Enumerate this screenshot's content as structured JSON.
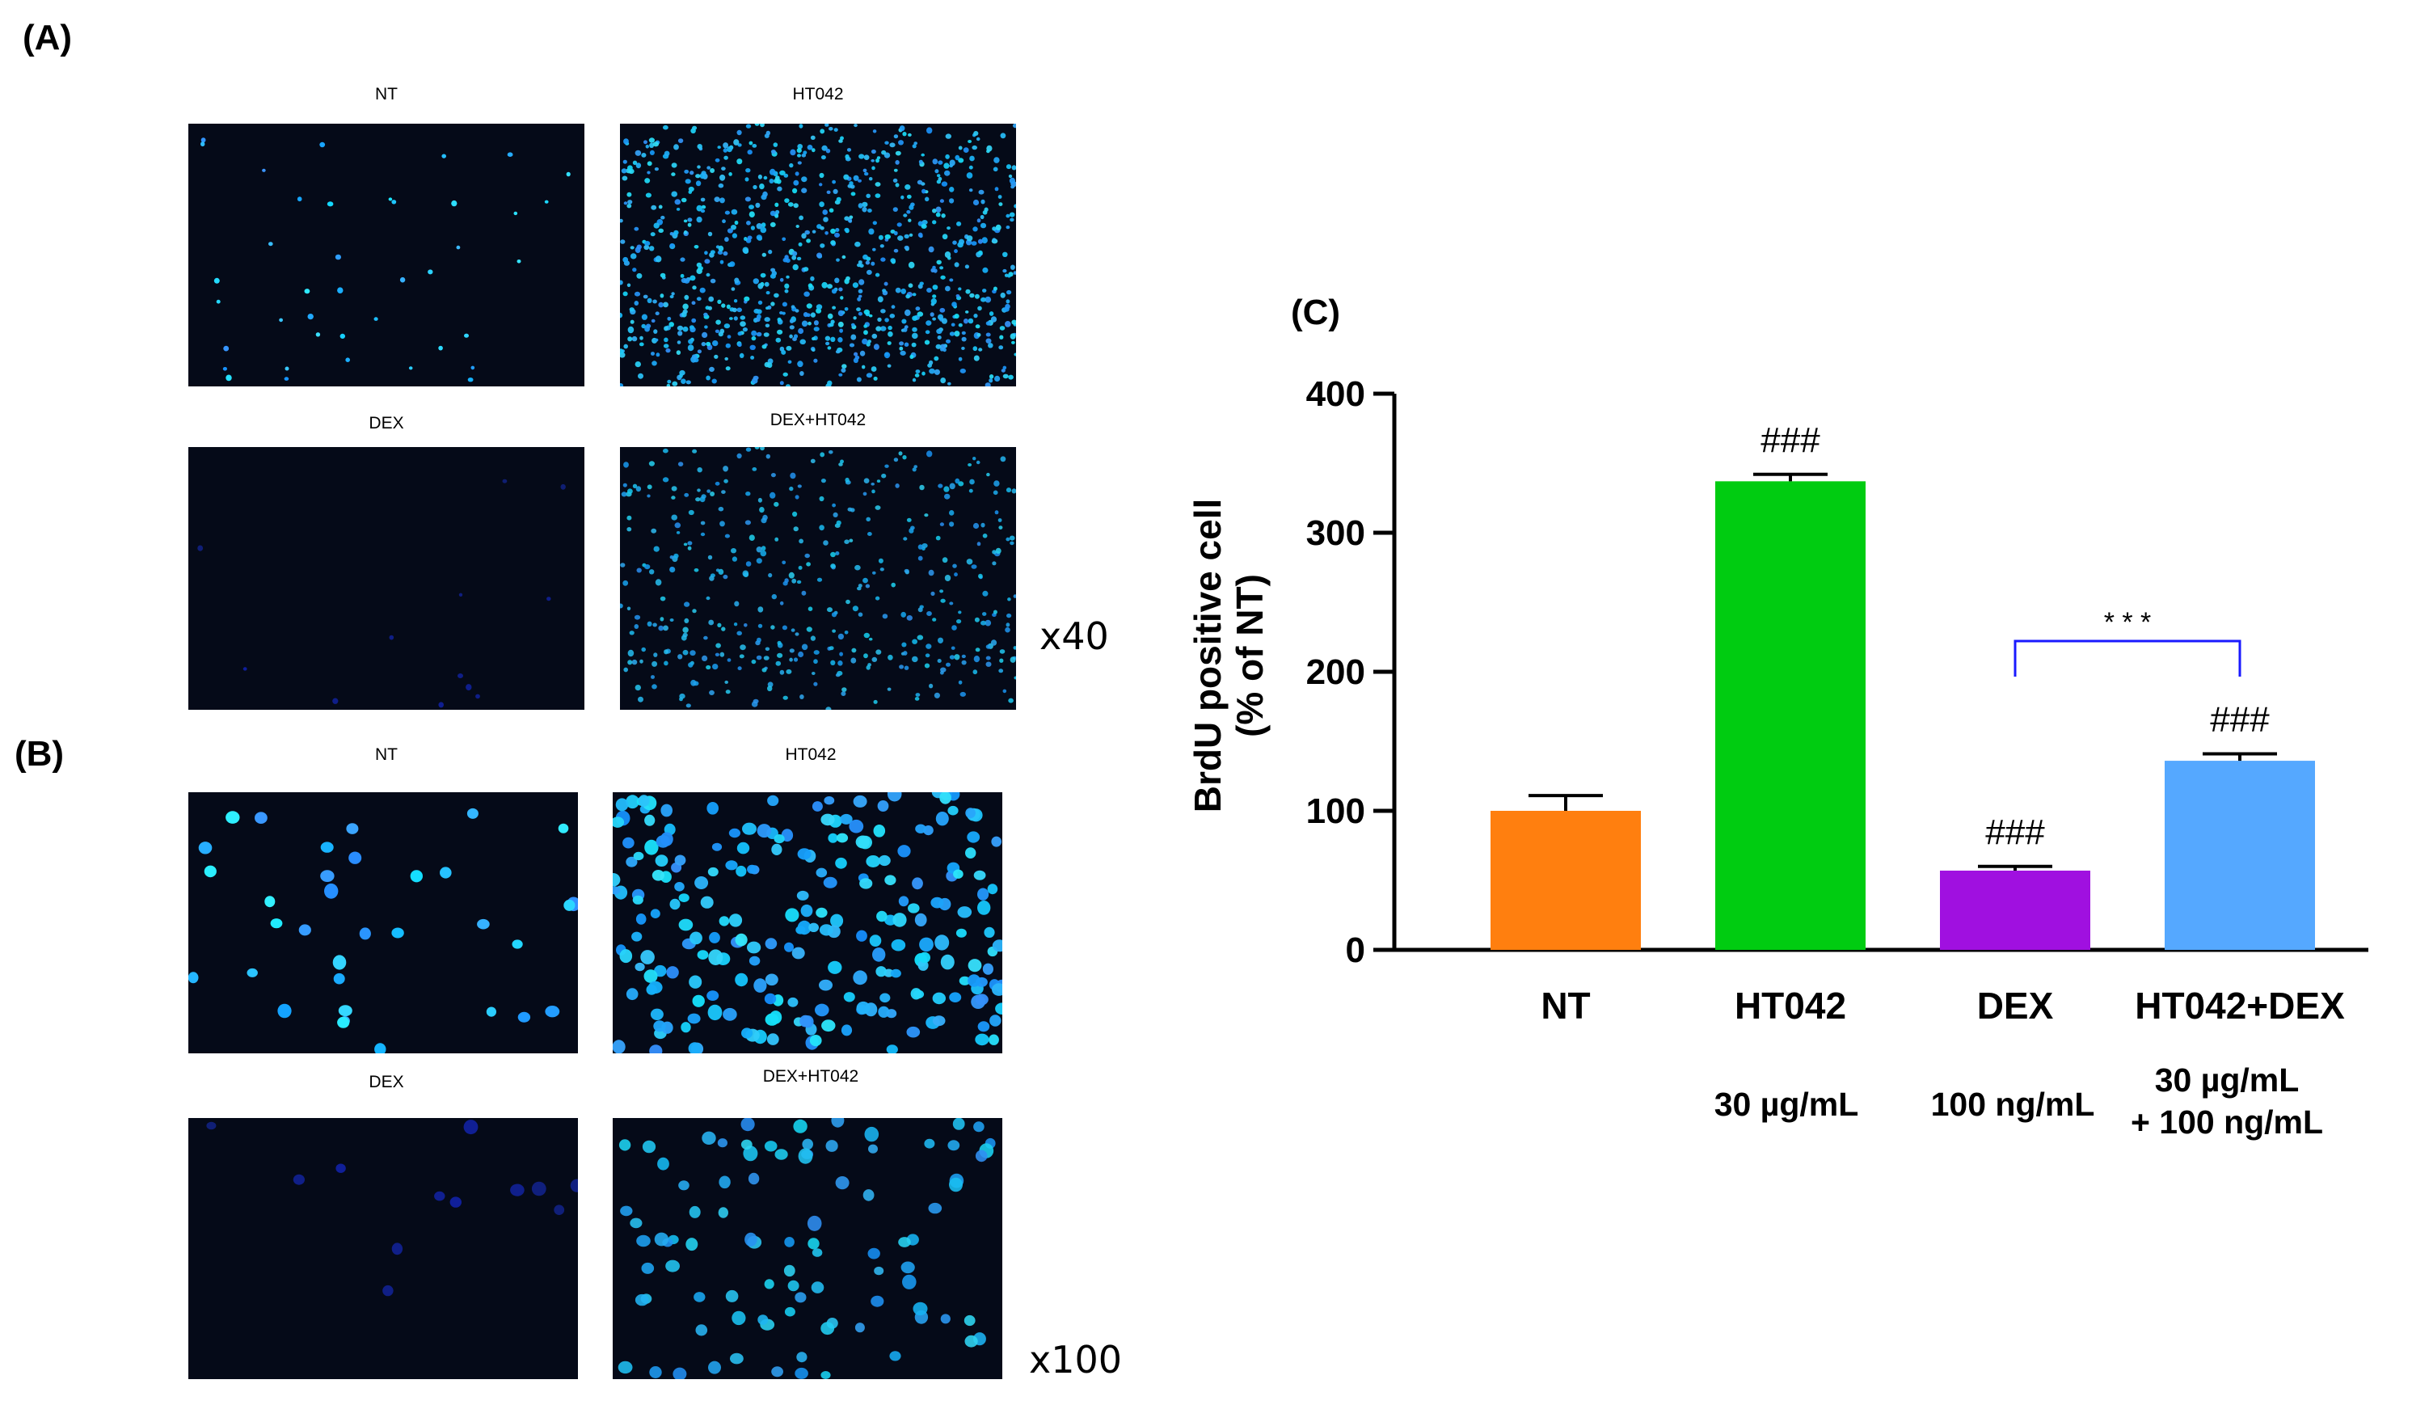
{
  "panels": {
    "a": {
      "label": "(A)",
      "magnification": "x40",
      "images": [
        {
          "title": "NT",
          "density": 40,
          "brightness": 1.0
        },
        {
          "title": "HT042",
          "density": 900,
          "brightness": 0.85
        },
        {
          "title": "DEX",
          "density": 12,
          "brightness": 0.35
        },
        {
          "title": "DEX+HT042",
          "density": 420,
          "brightness": 0.7
        }
      ]
    },
    "b": {
      "label": "(B)",
      "magnification": "x100",
      "images": [
        {
          "title": "NT",
          "density": 34,
          "brightness": 1.0
        },
        {
          "title": "HT042",
          "density": 230,
          "brightness": 0.9
        },
        {
          "title": "DEX",
          "density": 12,
          "brightness": 0.4
        },
        {
          "title": "DEX+HT042",
          "density": 90,
          "brightness": 0.75
        }
      ]
    },
    "c": {
      "label": "(C)"
    }
  },
  "chart_data": {
    "type": "bar",
    "title": "",
    "ylabel_line1": "BrdU positive cell",
    "ylabel_line2": "(% of NT)",
    "ylim": [
      0,
      400
    ],
    "yticks": [
      "0",
      "100",
      "200",
      "300",
      "400"
    ],
    "categories": [
      "NT",
      "HT042",
      "DEX",
      "HT042+DEX"
    ],
    "values": [
      100,
      337,
      57,
      136
    ],
    "errors": [
      11,
      5,
      3,
      5
    ],
    "colors": [
      "#ff7f0f",
      "#00cc11",
      "#a010e0",
      "#55a8ff"
    ],
    "bar_annotations": [
      "",
      "###",
      "###",
      "###"
    ],
    "concentrations": [
      "",
      "30 µg/mL",
      "100 ng/mL",
      "30 µg/mL\n+ 100 ng/mL"
    ],
    "comparison": {
      "from": "DEX",
      "to": "HT042+DEX",
      "label": "* * *",
      "color": "#1a1aff"
    }
  }
}
